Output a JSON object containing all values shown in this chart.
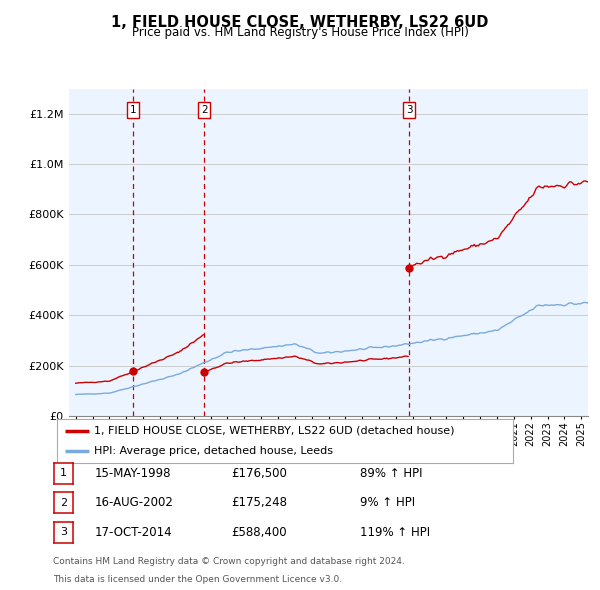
{
  "title": "1, FIELD HOUSE CLOSE, WETHERBY, LS22 6UD",
  "subtitle": "Price paid vs. HM Land Registry's House Price Index (HPI)",
  "property_label": "1, FIELD HOUSE CLOSE, WETHERBY, LS22 6UD (detached house)",
  "hpi_label": "HPI: Average price, detached house, Leeds",
  "footer1": "Contains HM Land Registry data © Crown copyright and database right 2024.",
  "footer2": "This data is licensed under the Open Government Licence v3.0.",
  "transactions": [
    {
      "num": 1,
      "date": "15-MAY-1998",
      "price": 176500,
      "pct": "89%",
      "year": 1998.38
    },
    {
      "num": 2,
      "date": "16-AUG-2002",
      "price": 175248,
      "pct": "9%",
      "year": 2002.62
    },
    {
      "num": 3,
      "date": "17-OCT-2014",
      "price": 588400,
      "pct": "119%",
      "year": 2014.79
    }
  ],
  "ylim": [
    0,
    1300000
  ],
  "xlim_start": 1994.6,
  "xlim_end": 2025.4,
  "property_color": "#cc0000",
  "hpi_color": "#7aaadd",
  "bg_color": "#ddeeff",
  "plot_bg": "#ffffff",
  "grid_color": "#cccccc",
  "dashed_color": "#cc0000",
  "n_months": 372
}
